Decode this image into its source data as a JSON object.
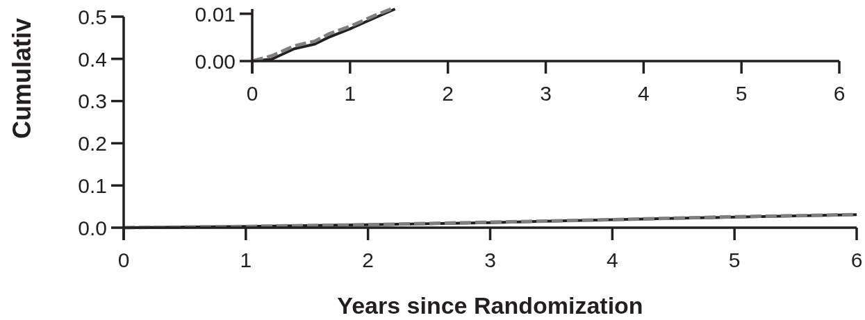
{
  "chart_data": [
    {
      "type": "line",
      "ylabel": "Cumulativ",
      "xlabel": "Years since Randomization",
      "xlim": [
        0,
        6
      ],
      "xticks": [
        0,
        1,
        2,
        3,
        4,
        5,
        6
      ],
      "ylim": [
        0,
        0.5
      ],
      "yticks": [
        {
          "value": 0,
          "label": "0.0"
        },
        0.1,
        0.2,
        0.3,
        0.4,
        0.5
      ],
      "series": [
        {
          "color": "#231f20",
          "line_style": "solid",
          "x": [
            0,
            1,
            2,
            3,
            4,
            5,
            6
          ],
          "values": [
            0,
            0.003,
            0.007,
            0.012,
            0.019,
            0.025,
            0.031
          ]
        },
        {
          "color": "#7f7f7f",
          "line_style": "dashed",
          "x": [
            0,
            1,
            2,
            3,
            4,
            5,
            6
          ],
          "values": [
            0,
            0.003,
            0.007,
            0.013,
            0.019,
            0.026,
            0.031
          ]
        }
      ]
    },
    {
      "type": "line",
      "xlim": [
        0,
        6
      ],
      "xticks": [
        0,
        1,
        2,
        3,
        4,
        5,
        6
      ],
      "ylim": [
        0,
        0.011
      ],
      "yticks": [
        {
          "value": 0,
          "label": "0.00"
        },
        0.01
      ],
      "series": [
        {
          "color": "#231f20",
          "line_style": "solid",
          "x": [
            0,
            0.2,
            0.43,
            0.64,
            0.78,
            1.02,
            1.26,
            1.46
          ],
          "values": [
            0,
            0.0004,
            0.0026,
            0.0036,
            0.005,
            0.007,
            0.0092,
            0.011
          ]
        },
        {
          "color": "#7f7f7f",
          "line_style": "dashed",
          "x": [
            0,
            0.2,
            0.43,
            0.64,
            0.78,
            1.02,
            1.26,
            1.42
          ],
          "values": [
            0,
            0.0011,
            0.0032,
            0.0042,
            0.0057,
            0.0075,
            0.0097,
            0.011
          ]
        }
      ]
    }
  ]
}
